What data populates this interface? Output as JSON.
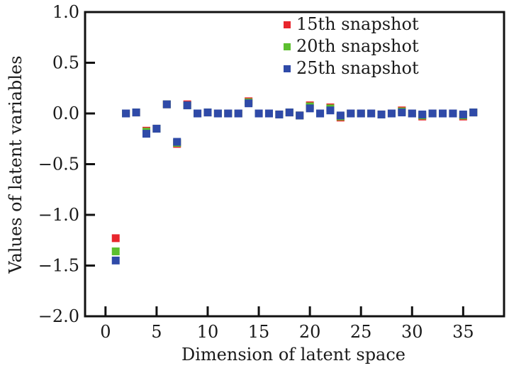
{
  "chart_data": {
    "type": "scatter",
    "title": "",
    "xlabel": "Dimension of latent space",
    "ylabel": "Values of latent variables",
    "xlim": [
      -2,
      39
    ],
    "ylim": [
      -2.0,
      1.0
    ],
    "xticks": [
      0,
      5,
      10,
      15,
      20,
      25,
      30,
      35
    ],
    "xtick_labels": [
      "0",
      "5",
      "10",
      "15",
      "20",
      "25",
      "30",
      "35"
    ],
    "yticks": [
      1.0,
      0.5,
      0.0,
      -0.5,
      -1.0,
      -1.5,
      -2.0
    ],
    "ytick_labels": [
      "1.0",
      "0.5",
      "0.0",
      "−0.5",
      "−1.0",
      "−1.5",
      "−2.0"
    ],
    "grid": false,
    "legend_position": "top-right",
    "x": [
      1,
      2,
      3,
      4,
      5,
      6,
      7,
      8,
      9,
      10,
      11,
      12,
      13,
      14,
      15,
      16,
      17,
      18,
      19,
      20,
      21,
      22,
      23,
      24,
      25,
      26,
      27,
      28,
      29,
      30,
      31,
      32,
      33,
      34,
      35,
      36
    ],
    "series": [
      {
        "name": "15th snapshot",
        "color": "#e8262d",
        "values": [
          -1.23,
          0.0,
          0.01,
          -0.17,
          -0.15,
          0.09,
          -0.3,
          0.09,
          0.0,
          0.01,
          0.0,
          0.0,
          0.0,
          0.12,
          0.0,
          0.0,
          -0.01,
          0.01,
          -0.02,
          0.08,
          0.0,
          0.06,
          -0.04,
          0.0,
          0.0,
          0.0,
          -0.01,
          0.0,
          0.03,
          0.0,
          -0.03,
          0.0,
          0.0,
          0.0,
          -0.03,
          0.01
        ]
      },
      {
        "name": "20th snapshot",
        "color": "#5cbf2f",
        "values": [
          -1.36,
          0.0,
          0.01,
          -0.18,
          -0.15,
          0.09,
          -0.29,
          0.08,
          0.0,
          0.01,
          0.0,
          0.0,
          0.0,
          0.11,
          0.0,
          0.0,
          -0.01,
          0.01,
          -0.02,
          0.07,
          0.0,
          0.05,
          -0.03,
          0.0,
          0.0,
          0.0,
          -0.01,
          0.0,
          0.02,
          0.0,
          -0.02,
          0.0,
          0.0,
          0.0,
          -0.02,
          0.01
        ]
      },
      {
        "name": "25th snapshot",
        "color": "#2f4aa8",
        "values": [
          -1.45,
          0.0,
          0.01,
          -0.2,
          -0.15,
          0.09,
          -0.28,
          0.08,
          0.0,
          0.01,
          0.0,
          0.0,
          0.0,
          0.1,
          0.0,
          0.0,
          -0.01,
          0.01,
          -0.02,
          0.05,
          0.0,
          0.03,
          -0.02,
          0.0,
          0.0,
          0.0,
          -0.01,
          0.0,
          0.01,
          0.0,
          -0.01,
          0.0,
          0.0,
          0.0,
          -0.01,
          0.01
        ]
      }
    ]
  }
}
